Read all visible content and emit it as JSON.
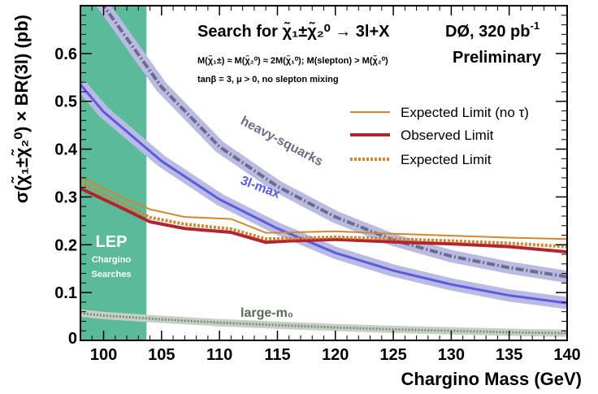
{
  "chart_data": {
    "type": "line",
    "title": "Search for χ̃₁±χ̃₂⁰ → 3l+X",
    "experiment": "DØ, 320 pb",
    "experiment_sup": "-1",
    "status": "Preliminary",
    "assumption_mass": "M(χ̃₁±) ≈ M(χ̃₂⁰) ≈ 2M(χ̃₁⁰);  M(slepton) > M(χ̃₂⁰)",
    "assumption_params": "tanβ = 3,  μ > 0, no slepton mixing",
    "xlabel": "Chargino Mass (GeV)",
    "ylabel": "σ(χ̃₁±χ̃₂⁰) × BR(3l) (pb)",
    "xlim": [
      98,
      140
    ],
    "ylim": [
      0,
      0.7
    ],
    "xticks": [
      100,
      105,
      110,
      115,
      120,
      125,
      130,
      135,
      140
    ],
    "yticks": [
      0.1,
      0.2,
      0.3,
      0.4,
      0.5,
      0.6
    ],
    "legend_position": "right",
    "excluded_region": {
      "label": "LEP",
      "sublabel_1": "Chargino",
      "sublabel_2": "Searches",
      "x_range": [
        98,
        103.7
      ],
      "color": "#5aba9a"
    },
    "series": [
      {
        "name": "Expected Limit (no τ)",
        "style": "solid-thin",
        "color": "#d4862c",
        "x": [
          98,
          100,
          102,
          104,
          107,
          111,
          114,
          120,
          125,
          130,
          135,
          140
        ],
        "y": [
          0.342,
          0.318,
          0.295,
          0.274,
          0.258,
          0.254,
          0.225,
          0.228,
          0.223,
          0.219,
          0.215,
          0.212
        ]
      },
      {
        "name": "Observed Limit",
        "style": "solid-thick",
        "color": "#b22530",
        "x": [
          98,
          100,
          102,
          104,
          107,
          111,
          114,
          116,
          120,
          125,
          130,
          135,
          140
        ],
        "y": [
          0.318,
          0.295,
          0.272,
          0.248,
          0.234,
          0.226,
          0.205,
          0.208,
          0.211,
          0.206,
          0.202,
          0.196,
          0.185
        ]
      },
      {
        "name": "Expected Limit",
        "style": "dotted-thick",
        "color": "#d4862c",
        "x": [
          98,
          100,
          102,
          104,
          107,
          111,
          114,
          116,
          120,
          125,
          130,
          135,
          140
        ],
        "y": [
          0.33,
          0.305,
          0.281,
          0.257,
          0.243,
          0.233,
          0.212,
          0.213,
          0.216,
          0.212,
          0.208,
          0.203,
          0.196
        ]
      }
    ],
    "theory_curves": [
      {
        "name": "heavy-squarks",
        "style": "dash-dot-band",
        "color": "#6b6b8a",
        "band_color": "#b9bbe2",
        "x": [
          98,
          100,
          105,
          110,
          115,
          120,
          125,
          130,
          135,
          140
        ],
        "y": [
          0.79,
          0.7,
          0.53,
          0.405,
          0.322,
          0.258,
          0.21,
          0.176,
          0.152,
          0.133
        ]
      },
      {
        "name": "3l-max",
        "style": "solid-band",
        "color": "#5b5be0",
        "band_color": "#b9bbe2",
        "x": [
          98,
          100,
          105,
          110,
          115,
          120,
          125,
          130,
          135,
          140
        ],
        "y": [
          0.535,
          0.478,
          0.375,
          0.295,
          0.234,
          0.183,
          0.146,
          0.117,
          0.094,
          0.078
        ]
      },
      {
        "name": "large-m₀",
        "style": "dotted-band",
        "color": "#7c8f7c",
        "band_color": "#c7cfc7",
        "x": [
          98,
          100,
          105,
          110,
          115,
          120,
          125,
          130,
          135,
          140
        ],
        "y": [
          0.057,
          0.052,
          0.044,
          0.037,
          0.032,
          0.027,
          0.023,
          0.02,
          0.017,
          0.015
        ]
      }
    ]
  }
}
